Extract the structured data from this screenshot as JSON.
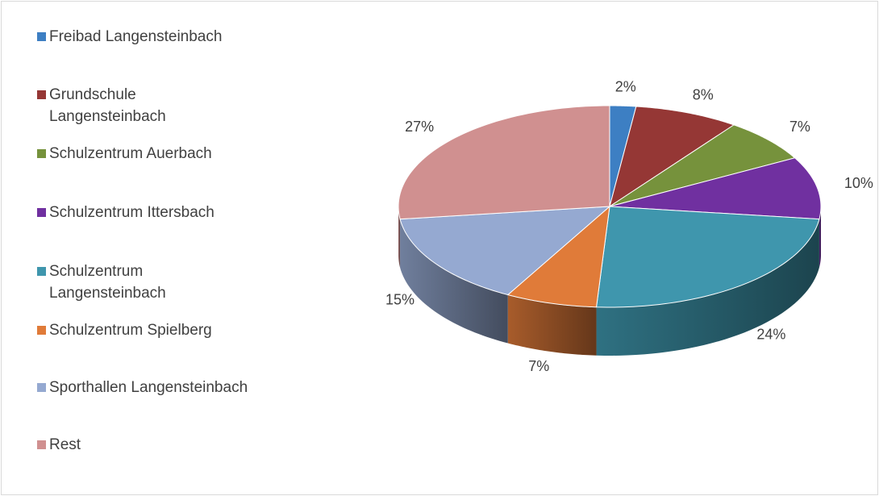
{
  "chart_data": {
    "type": "pie",
    "categories": [
      "Freibad Langensteinbach",
      "Grundschule Langensteinbach",
      "Schulzentrum Auerbach",
      "Schulzentrum Ittersbach",
      "Schulzentrum Langensteinbach",
      "Schulzentrum Spielberg",
      "Sporthallen Langensteinbach",
      "Rest"
    ],
    "values": [
      2,
      8,
      7,
      10,
      24,
      7,
      15,
      27
    ],
    "value_labels": [
      "2%",
      "8%",
      "7%",
      "10%",
      "24%",
      "7%",
      "15%",
      "27%"
    ],
    "colors": [
      "#3d7fc3",
      "#953735",
      "#76923c",
      "#7030a0",
      "#3f96ad",
      "#e07b39",
      "#95a9d1",
      "#d09090"
    ],
    "legend": "left"
  }
}
